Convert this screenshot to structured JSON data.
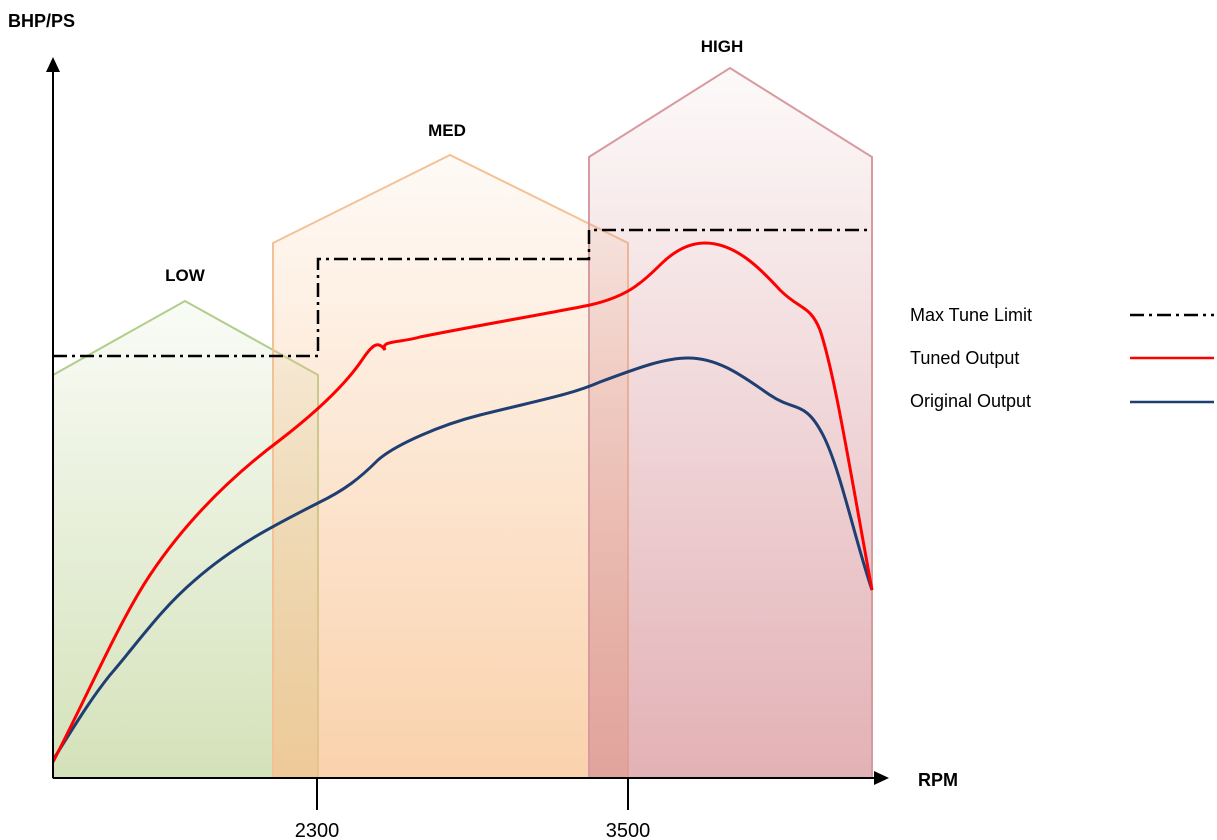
{
  "chart_data": {
    "type": "line",
    "title": "",
    "xlabel": "RPM",
    "ylabel": "BHP/PS",
    "x_ticks": [
      "2300",
      "3500"
    ],
    "grid": false,
    "legend_position": "right",
    "zones": [
      {
        "name": "LOW",
        "color": "#b9d08f"
      },
      {
        "name": "MED",
        "color": "#f8c08c"
      },
      {
        "name": "HIGH",
        "color": "#d69096"
      }
    ],
    "series": [
      {
        "name": "Max Tune Limit",
        "style": "dash-dot",
        "color": "#000000"
      },
      {
        "name": "Tuned Output",
        "style": "solid",
        "color": "#ff0000"
      },
      {
        "name": "Original Output",
        "style": "solid",
        "color": "#1f3f73"
      }
    ]
  }
}
